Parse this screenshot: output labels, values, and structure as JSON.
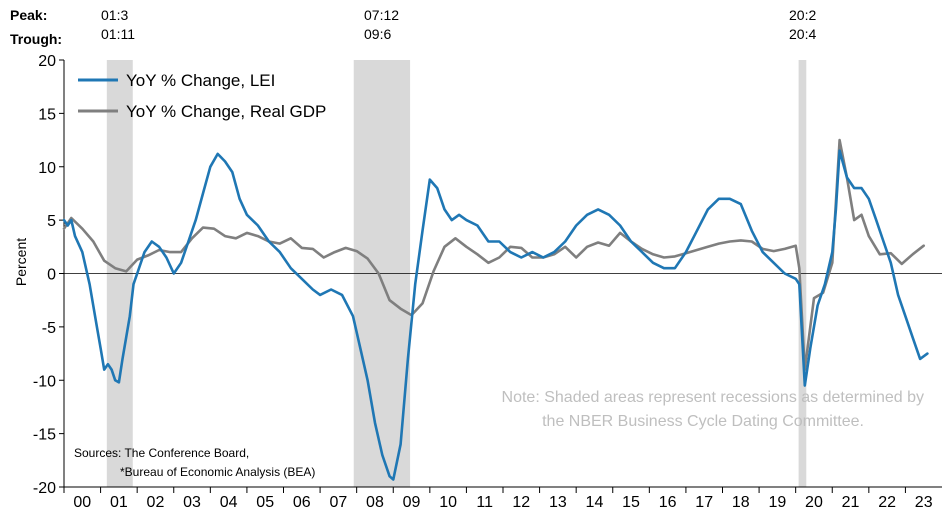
{
  "labels": {
    "peak": "Peak:",
    "trough": "Trough:"
  },
  "recession_labels": [
    {
      "peak": "01:3",
      "trough": "01:11"
    },
    {
      "peak": "07:12",
      "trough": "09:6"
    },
    {
      "peak": "20:2",
      "trough": "20:4"
    }
  ],
  "note": {
    "line1": "Note: Shaded areas represent recessions as determined by",
    "line2": "the NBER Business Cycle Dating Committee."
  },
  "sources": {
    "line1": "Sources: The Conference Board,",
    "line2": "*Bureau of Economic Analysis (BEA)"
  },
  "colors": {
    "lei": "#1f77b4",
    "gdp": "#7f7f7f",
    "recession": "#d9d9d9",
    "note": "#bfbfbf"
  },
  "chart_data": {
    "type": "line",
    "ylabel": "Percent",
    "ylim": [
      -20,
      20
    ],
    "yticks": [
      20,
      15,
      10,
      5,
      0,
      -5,
      -10,
      -15,
      -20
    ],
    "xlim": [
      2000.0,
      2024.0
    ],
    "xtick_labels": [
      "00",
      "01",
      "02",
      "03",
      "04",
      "05",
      "06",
      "07",
      "08",
      "09",
      "10",
      "11",
      "12",
      "13",
      "14",
      "15",
      "16",
      "17",
      "18",
      "19",
      "20",
      "21",
      "22",
      "23"
    ],
    "recessions": [
      [
        2001.17,
        2001.88
      ],
      [
        2007.92,
        2009.46
      ],
      [
        2020.08,
        2020.29
      ]
    ],
    "legend_position": "top-left",
    "series": [
      {
        "name": "YoY % Change, LEI",
        "x": [
          2000.0,
          2000.1,
          2000.2,
          2000.3,
          2000.5,
          2000.7,
          2000.9,
          2001.0,
          2001.1,
          2001.2,
          2001.3,
          2001.4,
          2001.5,
          2001.6,
          2001.8,
          2001.9,
          2002.0,
          2002.2,
          2002.4,
          2002.6,
          2002.8,
          2003.0,
          2003.2,
          2003.4,
          2003.6,
          2003.8,
          2004.0,
          2004.2,
          2004.4,
          2004.6,
          2004.8,
          2005.0,
          2005.3,
          2005.6,
          2005.9,
          2006.2,
          2006.5,
          2006.8,
          2007.0,
          2007.3,
          2007.6,
          2007.9,
          2008.1,
          2008.3,
          2008.5,
          2008.7,
          2008.9,
          2009.0,
          2009.2,
          2009.4,
          2009.6,
          2009.8,
          2010.0,
          2010.2,
          2010.4,
          2010.6,
          2010.8,
          2011.0,
          2011.3,
          2011.6,
          2011.9,
          2012.2,
          2012.5,
          2012.8,
          2013.1,
          2013.4,
          2013.7,
          2014.0,
          2014.3,
          2014.6,
          2014.9,
          2015.2,
          2015.5,
          2015.8,
          2016.1,
          2016.4,
          2016.7,
          2017.0,
          2017.3,
          2017.6,
          2017.9,
          2018.2,
          2018.5,
          2018.8,
          2019.1,
          2019.4,
          2019.7,
          2020.0,
          2020.1,
          2020.25,
          2020.4,
          2020.6,
          2020.8,
          2021.0,
          2021.1,
          2021.2,
          2021.4,
          2021.6,
          2021.8,
          2022.0,
          2022.2,
          2022.4,
          2022.6,
          2022.8,
          2023.0,
          2023.2,
          2023.4,
          2023.6
        ],
        "y": [
          5,
          4.5,
          5,
          3.5,
          2,
          -1,
          -5,
          -7,
          -9,
          -8.5,
          -9,
          -10,
          -10.2,
          -8,
          -4,
          -1,
          0,
          2,
          3,
          2.5,
          1.5,
          0,
          1,
          3,
          5,
          7.5,
          10,
          11.2,
          10.5,
          9.5,
          7,
          5.5,
          4.5,
          3,
          2,
          0.5,
          -0.5,
          -1.5,
          -2,
          -1.5,
          -2,
          -4,
          -7,
          -10,
          -14,
          -17,
          -19,
          -19.3,
          -16,
          -8,
          -1,
          4,
          8.8,
          8,
          6,
          5,
          5.5,
          5,
          4.5,
          3,
          3,
          2,
          1.5,
          2,
          1.5,
          2,
          3,
          4.5,
          5.5,
          6,
          5.5,
          4.5,
          3,
          2,
          1,
          0.5,
          0.5,
          2,
          4,
          6,
          7,
          7,
          6.5,
          4,
          2,
          1,
          0,
          -0.5,
          -1,
          -10.5,
          -7,
          -3,
          -1,
          2,
          6,
          11.5,
          9,
          8,
          8,
          7,
          5,
          3,
          1,
          -2,
          -4,
          -6,
          -8,
          -7.5
        ]
      },
      {
        "name": "YoY % Change, Real GDP",
        "x": [
          2000.0,
          2000.2,
          2000.5,
          2000.8,
          2001.1,
          2001.4,
          2001.7,
          2002.0,
          2002.3,
          2002.6,
          2002.9,
          2003.2,
          2003.5,
          2003.8,
          2004.1,
          2004.4,
          2004.7,
          2005.0,
          2005.3,
          2005.6,
          2005.9,
          2006.2,
          2006.5,
          2006.8,
          2007.1,
          2007.4,
          2007.7,
          2008.0,
          2008.3,
          2008.6,
          2008.9,
          2009.2,
          2009.5,
          2009.8,
          2010.1,
          2010.4,
          2010.7,
          2011.0,
          2011.3,
          2011.6,
          2011.9,
          2012.2,
          2012.5,
          2012.8,
          2013.1,
          2013.4,
          2013.7,
          2014.0,
          2014.3,
          2014.6,
          2014.9,
          2015.2,
          2015.5,
          2015.8,
          2016.1,
          2016.4,
          2016.7,
          2017.0,
          2017.3,
          2017.6,
          2017.9,
          2018.2,
          2018.5,
          2018.8,
          2019.1,
          2019.4,
          2019.7,
          2020.0,
          2020.1,
          2020.25,
          2020.5,
          2020.75,
          2021.0,
          2021.2,
          2021.4,
          2021.6,
          2021.8,
          2022.0,
          2022.3,
          2022.6,
          2022.9,
          2023.2,
          2023.5
        ],
        "y": [
          4.2,
          5.2,
          4.2,
          3,
          1.2,
          0.5,
          0.2,
          1.3,
          1.7,
          2.2,
          2,
          2,
          3.3,
          4.3,
          4.2,
          3.5,
          3.3,
          3.8,
          3.5,
          3,
          2.8,
          3.3,
          2.4,
          2.3,
          1.5,
          2,
          2.4,
          2.1,
          1.4,
          0,
          -2.5,
          -3.3,
          -3.9,
          -2.8,
          0.2,
          2.5,
          3.3,
          2.5,
          1.8,
          1,
          1.5,
          2.5,
          2.4,
          1.5,
          1.5,
          1.8,
          2.5,
          1.5,
          2.5,
          2.9,
          2.6,
          3.8,
          3,
          2.3,
          1.8,
          1.5,
          1.6,
          1.9,
          2.2,
          2.5,
          2.8,
          3,
          3.1,
          3,
          2.3,
          2.1,
          2.3,
          2.6,
          0.5,
          -9,
          -2.3,
          -1.8,
          1,
          12.5,
          9,
          5,
          5.5,
          3.5,
          1.8,
          1.9,
          0.9,
          1.8,
          2.6
        ]
      }
    ]
  }
}
